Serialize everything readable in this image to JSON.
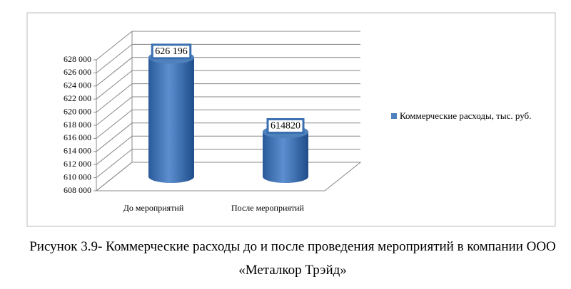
{
  "chart_data": {
    "type": "bar3d-cylinder",
    "categories": [
      "До мероприятий",
      "После мероприятий"
    ],
    "series": [
      {
        "name": "Коммерческие расходы, тыс. руб.",
        "color": "#4f81bd",
        "values": [
          626196,
          614820
        ],
        "value_labels": [
          "626 196",
          "614820"
        ]
      }
    ],
    "ylim": [
      608000,
      628000
    ],
    "yticks": [
      {
        "value": 608000,
        "label": "608 000"
      },
      {
        "value": 610000,
        "label": "610 000"
      },
      {
        "value": 612000,
        "label": "612 000"
      },
      {
        "value": 614000,
        "label": "614 000"
      },
      {
        "value": 616000,
        "label": "616 000"
      },
      {
        "value": 618000,
        "label": "618 000"
      },
      {
        "value": 620000,
        "label": "620 000"
      },
      {
        "value": 622000,
        "label": "622 000"
      },
      {
        "value": 624000,
        "label": "624 000"
      },
      {
        "value": 626000,
        "label": "626 000"
      },
      {
        "value": 628000,
        "label": "628 000"
      }
    ],
    "grid": true,
    "legend": "right",
    "caption": "Рисунок 3.9- Коммерческие расходы до и после проведения мероприятий в компании ООО «Металкор Трэйд»"
  }
}
